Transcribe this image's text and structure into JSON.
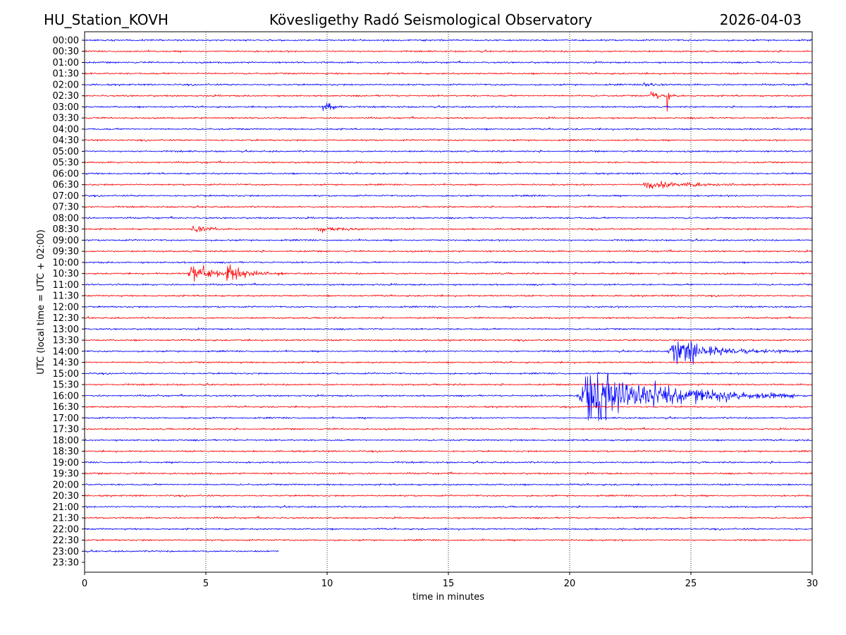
{
  "header": {
    "station": "HU_Station_KOVH",
    "title": "Kövesligethy Radó Seismological Observatory",
    "date": "2026-04-03"
  },
  "chart_data": {
    "type": "line",
    "subtype": "helicorder",
    "title": "Kövesligethy Radó Seismological Observatory",
    "xlabel": "time in minutes",
    "ylabel": "UTC (local time = UTC + 02:00)",
    "xlim": [
      0,
      30
    ],
    "xticks": [
      "0",
      "5",
      "10",
      "15",
      "20",
      "25",
      "30"
    ],
    "grid": "vertical dotted at each 5 minutes",
    "row_labels": [
      "00:00",
      "00:30",
      "01:00",
      "01:30",
      "02:00",
      "02:30",
      "03:00",
      "03:30",
      "04:00",
      "04:30",
      "05:00",
      "05:30",
      "06:00",
      "06:30",
      "07:00",
      "07:30",
      "08:00",
      "08:30",
      "09:00",
      "09:30",
      "10:00",
      "10:30",
      "11:00",
      "11:30",
      "12:00",
      "12:30",
      "13:00",
      "13:30",
      "14:00",
      "14:30",
      "15:00",
      "15:30",
      "16:00",
      "16:30",
      "17:00",
      "17:30",
      "18:00",
      "18:30",
      "19:00",
      "19:30",
      "20:00",
      "20:30",
      "21:00",
      "21:30",
      "22:00",
      "22:30",
      "23:00",
      "23:30"
    ],
    "colors": [
      "#0000ff",
      "#ff0000"
    ],
    "noise_level": 0.1,
    "last_row_end_minute": 8.0,
    "last_row_with_data": "23:00",
    "events": [
      {
        "row": "02:00",
        "start": 23.0,
        "duration": 1.2,
        "amplitude": 0.25
      },
      {
        "row": "02:30",
        "start": 23.3,
        "duration": 1.4,
        "amplitude": 0.6
      },
      {
        "row": "02:30",
        "start": 24.0,
        "duration": 0.2,
        "amplitude": 1.5
      },
      {
        "row": "03:00",
        "start": 9.8,
        "duration": 1.2,
        "amplitude": 0.7
      },
      {
        "row": "06:30",
        "start": 23.0,
        "duration": 4.0,
        "amplitude": 0.6
      },
      {
        "row": "07:00",
        "start": 18.4,
        "duration": 0.2,
        "amplitude": 0.5
      },
      {
        "row": "08:30",
        "start": 4.4,
        "duration": 1.5,
        "amplitude": 0.6
      },
      {
        "row": "08:30",
        "start": 9.5,
        "duration": 3.0,
        "amplitude": 0.3
      },
      {
        "row": "10:30",
        "start": 4.2,
        "duration": 4.0,
        "amplitude": 1.0
      },
      {
        "row": "10:30",
        "start": 5.8,
        "duration": 1.5,
        "amplitude": 0.9
      },
      {
        "row": "14:00",
        "start": 24.0,
        "duration": 5.5,
        "amplitude": 1.6
      },
      {
        "row": "16:00",
        "start": 20.3,
        "duration": 9.0,
        "amplitude": 3.6
      }
    ]
  }
}
